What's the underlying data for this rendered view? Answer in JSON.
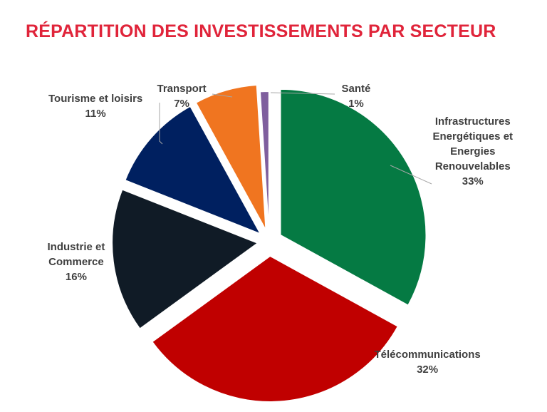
{
  "chart_data": {
    "type": "pie",
    "title": "RÉPARTITION DES INVESTISSEMENTS PAR SECTEUR",
    "slices": [
      {
        "label_lines": [
          "Infrastructures",
          "Energétiques et",
          "Energies",
          "Renouvelables"
        ],
        "pct_label": "33%",
        "value": 33,
        "color": "#057a43"
      },
      {
        "label_lines": [
          "Télécommunications"
        ],
        "pct_label": "32%",
        "value": 32,
        "color": "#c00000"
      },
      {
        "label_lines": [
          "Industrie et",
          "Commerce"
        ],
        "pct_label": "16%",
        "value": 16,
        "color": "#101b26"
      },
      {
        "label_lines": [
          "Tourisme et loisirs"
        ],
        "pct_label": "11%",
        "value": 11,
        "color": "#002060"
      },
      {
        "label_lines": [
          "Transport"
        ],
        "pct_label": "7%",
        "value": 7,
        "color": "#f07520"
      },
      {
        "label_lines": [
          "Santé"
        ],
        "pct_label": "1%",
        "value": 1,
        "color": "#7f5f9e"
      }
    ]
  }
}
